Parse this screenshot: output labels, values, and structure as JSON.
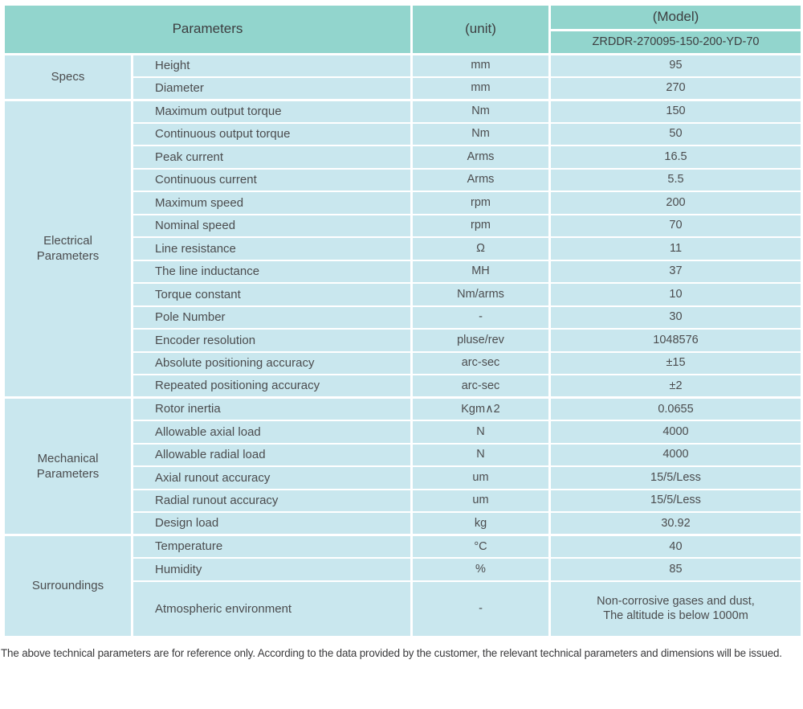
{
  "table": {
    "header": {
      "parameters_label": "Parameters",
      "unit_label": "(unit)",
      "model_label": "(Model)",
      "model_value": "ZRDDR-270095-150-200-YD-70"
    },
    "sections": [
      {
        "label": "Specs",
        "rows": [
          {
            "param": "Height",
            "unit": "mm",
            "value": "95"
          },
          {
            "param": "Diameter",
            "unit": "mm",
            "value": "270"
          }
        ]
      },
      {
        "label": "Electrical\nParameters",
        "rows": [
          {
            "param": "Maximum output torque",
            "unit": "Nm",
            "value": "150"
          },
          {
            "param": "Continuous output torque",
            "unit": "Nm",
            "value": "50"
          },
          {
            "param": "Peak current",
            "unit": "Arms",
            "value": "16.5"
          },
          {
            "param": "Continuous current",
            "unit": "Arms",
            "value": "5.5"
          },
          {
            "param": "Maximum speed",
            "unit": "rpm",
            "value": "200"
          },
          {
            "param": "Nominal speed",
            "unit": "rpm",
            "value": "70"
          },
          {
            "param": "Line resistance",
            "unit": "Ω",
            "value": "11"
          },
          {
            "param": "The line inductance",
            "unit": "MH",
            "value": "37"
          },
          {
            "param": "Torque constant",
            "unit": "Nm/arms",
            "value": "10"
          },
          {
            "param": "Pole Number",
            "unit": "-",
            "value": "30"
          },
          {
            "param": "Encoder resolution",
            "unit": "pluse/rev",
            "value": "1048576"
          },
          {
            "param": "Absolute positioning accuracy",
            "unit": "arc-sec",
            "value": "±15"
          },
          {
            "param": "Repeated positioning accuracy",
            "unit": "arc-sec",
            "value": "±2"
          }
        ]
      },
      {
        "label": "Mechanical\nParameters",
        "rows": [
          {
            "param": "Rotor inertia",
            "unit": "Kgm∧2",
            "value": "0.0655"
          },
          {
            "param": "Allowable axial load",
            "unit": "N",
            "value": "4000"
          },
          {
            "param": "Allowable radial load",
            "unit": "N",
            "value": "4000"
          },
          {
            "param": "Axial runout accuracy",
            "unit": "um",
            "value": "15/5/Less"
          },
          {
            "param": "Radial runout accuracy",
            "unit": "um",
            "value": "15/5/Less"
          },
          {
            "param": "Design load",
            "unit": "kg",
            "value": "30.92"
          }
        ]
      },
      {
        "label": "Surroundings",
        "rows": [
          {
            "param": "Temperature",
            "unit": "°C",
            "value": "40"
          },
          {
            "param": "Humidity",
            "unit": "%",
            "value": "85"
          },
          {
            "param": "Atmospheric environment",
            "unit": "-",
            "value": "Non-corrosive gases and dust,\nThe altitude is below 1000m",
            "tall": true
          }
        ]
      }
    ]
  },
  "footer": {
    "note": "The above technical parameters are for reference only. According to the data provided by the customer, the relevant technical parameters and dimensions will be issued."
  },
  "colors": {
    "header_bg": "#92d5cd",
    "cell_bg": "#c9e7ee",
    "border": "#ffffff",
    "text": "#4b4c4e"
  }
}
